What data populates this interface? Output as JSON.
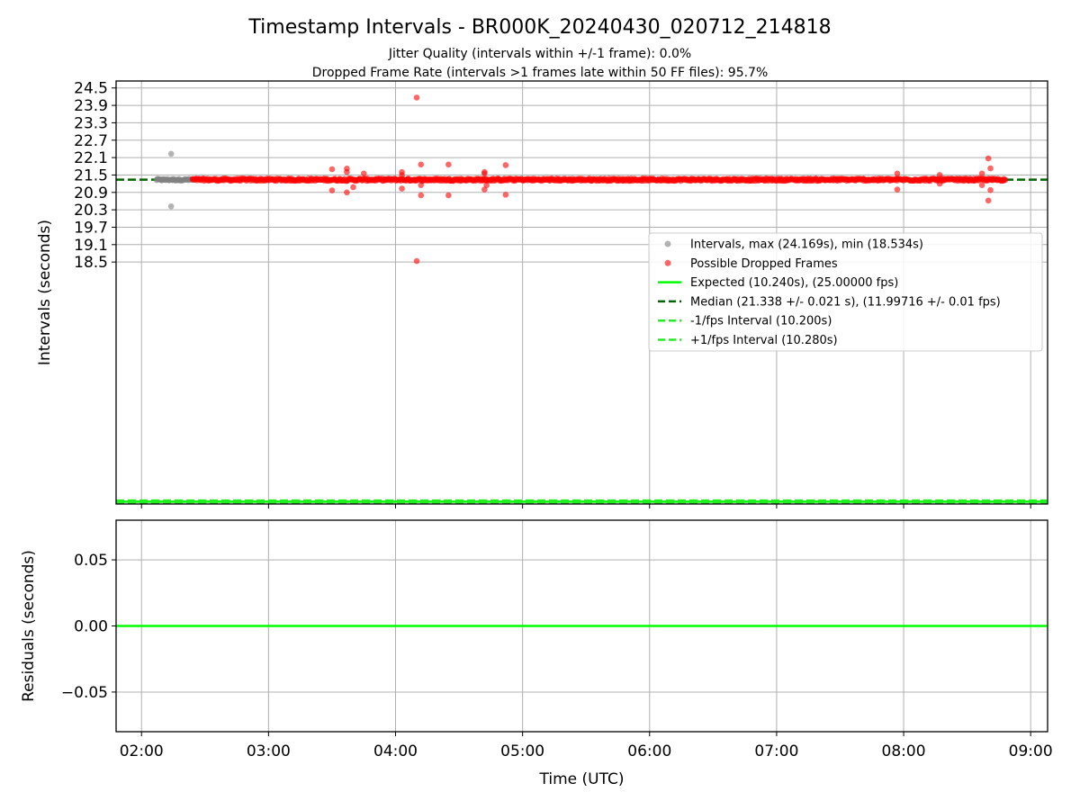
{
  "title": "Timestamp Intervals - BR000K_20240430_020712_214818",
  "subtitle_lines": [
    "Jitter Quality (intervals within +/-1 frame): 0.0%",
    "Dropped Frame Rate (intervals >1 frames late within 50 FF files): 95.7%"
  ],
  "colors": {
    "intervals": "#808080",
    "dropped": "#ff0000",
    "expected": "#00ff00",
    "median": "#006400",
    "bound": "#22ee22",
    "grid": "#b0b0b0",
    "frame": "#000000"
  },
  "chart_data": [
    {
      "type": "scatter",
      "title": "Timestamp Intervals - BR000K_20240430_020712_214818",
      "subtitle": [
        "Jitter Quality (intervals within +/-1 frame): 0.0%",
        "Dropped Frame Rate (intervals >1 frames late within 50 FF files): 95.7%"
      ],
      "xlabel": "",
      "ylabel": "Intervals (seconds)",
      "x_unit": "time UTC (HH:MM on 2024-04-30)",
      "xlim": [
        "01:48",
        "09:08"
      ],
      "ylim": [
        10.16,
        24.74
      ],
      "grid": true,
      "x_tick_labels": [
        "02:00",
        "03:00",
        "04:00",
        "05:00",
        "06:00",
        "07:00",
        "08:00",
        "09:00"
      ],
      "y_ticks": [
        18.5,
        19.1,
        19.7,
        20.3,
        20.9,
        21.5,
        22.1,
        22.7,
        23.3,
        23.9,
        24.5
      ],
      "y_tick_labels": [
        "18.5",
        "19.1",
        "19.7",
        "20.3",
        "20.9",
        "21.5",
        "22.1",
        "22.7",
        "23.3",
        "23.9",
        "24.5"
      ],
      "legend_position": "center-right",
      "series": [
        {
          "name": "Intervals, max (24.169s), min (18.534s)",
          "kind": "scatter",
          "color": "#808080",
          "band": {
            "from": "02:07",
            "to": "02:24",
            "center": 21.338,
            "spread": 0.03,
            "approx_count": 45
          },
          "outliers": [
            {
              "x": "02:14",
              "y": 22.23
            },
            {
              "x": "02:14",
              "y": 20.42
            }
          ]
        },
        {
          "name": "Possible Dropped Frames",
          "kind": "scatter",
          "color": "#ff0000",
          "band": {
            "from": "02:24",
            "to": "08:48",
            "center": 21.338,
            "spread": 0.04,
            "approx_count": 1080
          },
          "outliers": [
            {
              "x": "04:10",
              "y": 24.169
            },
            {
              "x": "04:10",
              "y": 18.534
            },
            {
              "x": "03:30",
              "y": 21.7
            },
            {
              "x": "03:30",
              "y": 20.97
            },
            {
              "x": "03:37",
              "y": 21.72
            },
            {
              "x": "03:37",
              "y": 21.6
            },
            {
              "x": "03:37",
              "y": 20.9
            },
            {
              "x": "03:40",
              "y": 21.08
            },
            {
              "x": "03:45",
              "y": 21.55
            },
            {
              "x": "04:03",
              "y": 21.6
            },
            {
              "x": "04:03",
              "y": 21.5
            },
            {
              "x": "04:03",
              "y": 21.03
            },
            {
              "x": "04:12",
              "y": 21.86
            },
            {
              "x": "04:12",
              "y": 20.8
            },
            {
              "x": "04:12",
              "y": 21.15
            },
            {
              "x": "04:25",
              "y": 21.86
            },
            {
              "x": "04:25",
              "y": 20.8
            },
            {
              "x": "04:42",
              "y": 21.6
            },
            {
              "x": "04:42",
              "y": 21.55
            },
            {
              "x": "04:42",
              "y": 21.0
            },
            {
              "x": "04:43",
              "y": 21.15
            },
            {
              "x": "04:52",
              "y": 21.84
            },
            {
              "x": "04:52",
              "y": 20.82
            },
            {
              "x": "07:57",
              "y": 21.55
            },
            {
              "x": "07:57",
              "y": 21.0
            },
            {
              "x": "08:17",
              "y": 21.5
            },
            {
              "x": "08:17",
              "y": 21.2
            },
            {
              "x": "08:40",
              "y": 22.07
            },
            {
              "x": "08:41",
              "y": 21.73
            },
            {
              "x": "08:41",
              "y": 20.98
            },
            {
              "x": "08:40",
              "y": 20.62
            },
            {
              "x": "08:37",
              "y": 21.55
            },
            {
              "x": "08:37",
              "y": 21.15
            }
          ]
        },
        {
          "name": "Expected (10.240s), (25.00000 fps)",
          "kind": "hline",
          "y": 10.24,
          "color": "#00ff00",
          "dash": "solid"
        },
        {
          "name": "Median (21.338 +/- 0.021 s), (11.99716 +/- 0.01 fps)",
          "kind": "hline",
          "y": 21.338,
          "color": "#006400",
          "dash": "dashed"
        },
        {
          "name": "-1/fps Interval (10.200s)",
          "kind": "hline",
          "y": 10.2,
          "color": "#22ee22",
          "dash": "dashed"
        },
        {
          "name": "+1/fps Interval (10.280s)",
          "kind": "hline",
          "y": 10.28,
          "color": "#22ee22",
          "dash": "dashed"
        }
      ]
    },
    {
      "type": "line",
      "title": "",
      "xlabel": "Time (UTC)",
      "ylabel": "Residuals (seconds)",
      "xlim": [
        "01:48",
        "09:08"
      ],
      "ylim": [
        -0.08,
        0.08
      ],
      "grid": true,
      "x_tick_labels": [
        "02:00",
        "03:00",
        "04:00",
        "05:00",
        "06:00",
        "07:00",
        "08:00",
        "09:00"
      ],
      "y_ticks": [
        0.05,
        0.0,
        -0.05
      ],
      "y_tick_labels": [
        "0.05",
        "0.00",
        "−0.05"
      ],
      "series": [
        {
          "kind": "hline",
          "y": 0.0,
          "color": "#00ff00",
          "dash": "solid"
        }
      ]
    }
  ]
}
